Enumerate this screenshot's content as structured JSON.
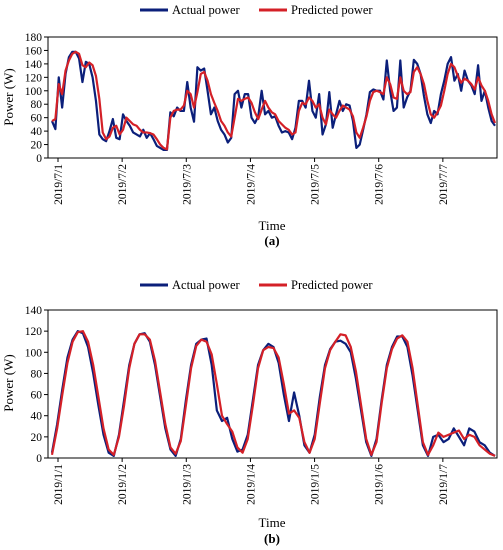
{
  "chart_data": [
    {
      "type": "line",
      "panel_label": "(a)",
      "xlabel": "Time",
      "ylabel": "Power (W)",
      "ylim": [
        0,
        180
      ],
      "yticks": [
        0,
        20,
        40,
        60,
        80,
        100,
        120,
        140,
        160,
        180
      ],
      "x_tick_labels": [
        "2019/7/1",
        "2019/7/2",
        "2019/7/3",
        "2019/7/4",
        "2019/7/5",
        "2019/7/6",
        "2019/7/7"
      ],
      "legend_position": "top-center",
      "colors": {
        "actual": "#0b1f7a",
        "predicted": "#d42027"
      },
      "series": [
        {
          "name": "Actual power",
          "values": [
            55,
            43,
            120,
            75,
            125,
            150,
            158,
            158,
            148,
            113,
            143,
            140,
            120,
            85,
            35,
            28,
            25,
            40,
            58,
            30,
            28,
            65,
            55,
            48,
            38,
            35,
            32,
            42,
            30,
            37,
            28,
            18,
            15,
            12,
            12,
            68,
            62,
            75,
            70,
            70,
            113,
            75,
            54,
            135,
            130,
            133,
            100,
            65,
            75,
            55,
            42,
            35,
            23,
            30,
            95,
            100,
            75,
            95,
            95,
            60,
            52,
            62,
            100,
            65,
            70,
            60,
            62,
            48,
            38,
            40,
            38,
            28,
            45,
            85,
            85,
            75,
            115,
            70,
            60,
            95,
            35,
            50,
            98,
            45,
            65,
            85,
            70,
            80,
            78,
            55,
            15,
            20,
            42,
            65,
            98,
            102,
            100,
            100,
            87,
            145,
            100,
            70,
            75,
            145,
            75,
            90,
            100,
            146,
            140,
            125,
            92,
            65,
            52,
            70,
            65,
            95,
            115,
            140,
            150,
            115,
            125,
            100,
            130,
            115,
            108,
            95,
            138,
            85,
            100,
            75,
            55,
            48
          ]
        },
        {
          "name": "Predicted power",
          "values": [
            55,
            58,
            110,
            95,
            130,
            145,
            155,
            158,
            155,
            138,
            135,
            142,
            138,
            122,
            88,
            38,
            28,
            32,
            45,
            48,
            35,
            42,
            60,
            55,
            50,
            48,
            42,
            38,
            38,
            37,
            35,
            28,
            20,
            15,
            13,
            60,
            70,
            72,
            72,
            78,
            100,
            95,
            75,
            98,
            125,
            128,
            115,
            95,
            82,
            70,
            55,
            48,
            38,
            32,
            60,
            88,
            85,
            88,
            90,
            82,
            68,
            58,
            72,
            85,
            75,
            68,
            65,
            55,
            50,
            45,
            42,
            35,
            38,
            70,
            82,
            80,
            90,
            85,
            75,
            80,
            60,
            50,
            72,
            65,
            60,
            70,
            78,
            75,
            72,
            62,
            38,
            30,
            45,
            62,
            85,
            98,
            100,
            98,
            95,
            120,
            110,
            90,
            88,
            120,
            100,
            95,
            98,
            128,
            135,
            125,
            110,
            85,
            65,
            60,
            68,
            78,
            100,
            125,
            140,
            135,
            122,
            112,
            118,
            115,
            110,
            102,
            120,
            108,
            100,
            85,
            65,
            52
          ]
        }
      ]
    },
    {
      "type": "line",
      "panel_label": "(b)",
      "xlabel": "Time",
      "ylabel": "Power (W)",
      "ylim": [
        0,
        140
      ],
      "yticks": [
        0,
        20,
        40,
        60,
        80,
        100,
        120,
        140
      ],
      "x_tick_labels": [
        "2019/1/1",
        "2019/1/2",
        "2019/1/3",
        "2019/1/4",
        "2019/1/5",
        "2019/1/6",
        "2019/1/7"
      ],
      "legend_position": "top-center",
      "colors": {
        "actual": "#0b1f7a",
        "predicted": "#d42027"
      },
      "series": [
        {
          "name": "Actual power",
          "values": [
            5,
            32,
            65,
            95,
            112,
            120,
            118,
            105,
            80,
            50,
            22,
            5,
            2,
            22,
            55,
            88,
            108,
            117,
            118,
            110,
            88,
            58,
            28,
            8,
            2,
            18,
            55,
            88,
            108,
            112,
            113,
            88,
            45,
            35,
            38,
            18,
            6,
            8,
            22,
            55,
            88,
            102,
            108,
            105,
            90,
            60,
            35,
            62,
            40,
            12,
            5,
            22,
            58,
            88,
            103,
            110,
            111,
            108,
            100,
            75,
            45,
            15,
            2,
            18,
            55,
            88,
            105,
            115,
            115,
            105,
            78,
            45,
            12,
            2,
            20,
            22,
            15,
            18,
            28,
            20,
            12,
            28,
            25,
            15,
            12,
            5,
            2
          ]
        },
        {
          "name": "Predicted power",
          "values": [
            3,
            28,
            60,
            90,
            110,
            119,
            120,
            110,
            88,
            58,
            28,
            8,
            3,
            20,
            50,
            85,
            108,
            117,
            117,
            112,
            92,
            62,
            32,
            10,
            4,
            16,
            50,
            85,
            106,
            112,
            110,
            98,
            70,
            40,
            32,
            25,
            10,
            5,
            18,
            50,
            85,
            102,
            105,
            104,
            95,
            70,
            42,
            45,
            38,
            15,
            5,
            18,
            52,
            85,
            102,
            110,
            117,
            116,
            105,
            82,
            50,
            18,
            3,
            15,
            52,
            85,
            103,
            113,
            116,
            110,
            85,
            50,
            15,
            3,
            12,
            24,
            20,
            22,
            24,
            26,
            18,
            22,
            20,
            12,
            8,
            4,
            2
          ]
        }
      ]
    }
  ]
}
